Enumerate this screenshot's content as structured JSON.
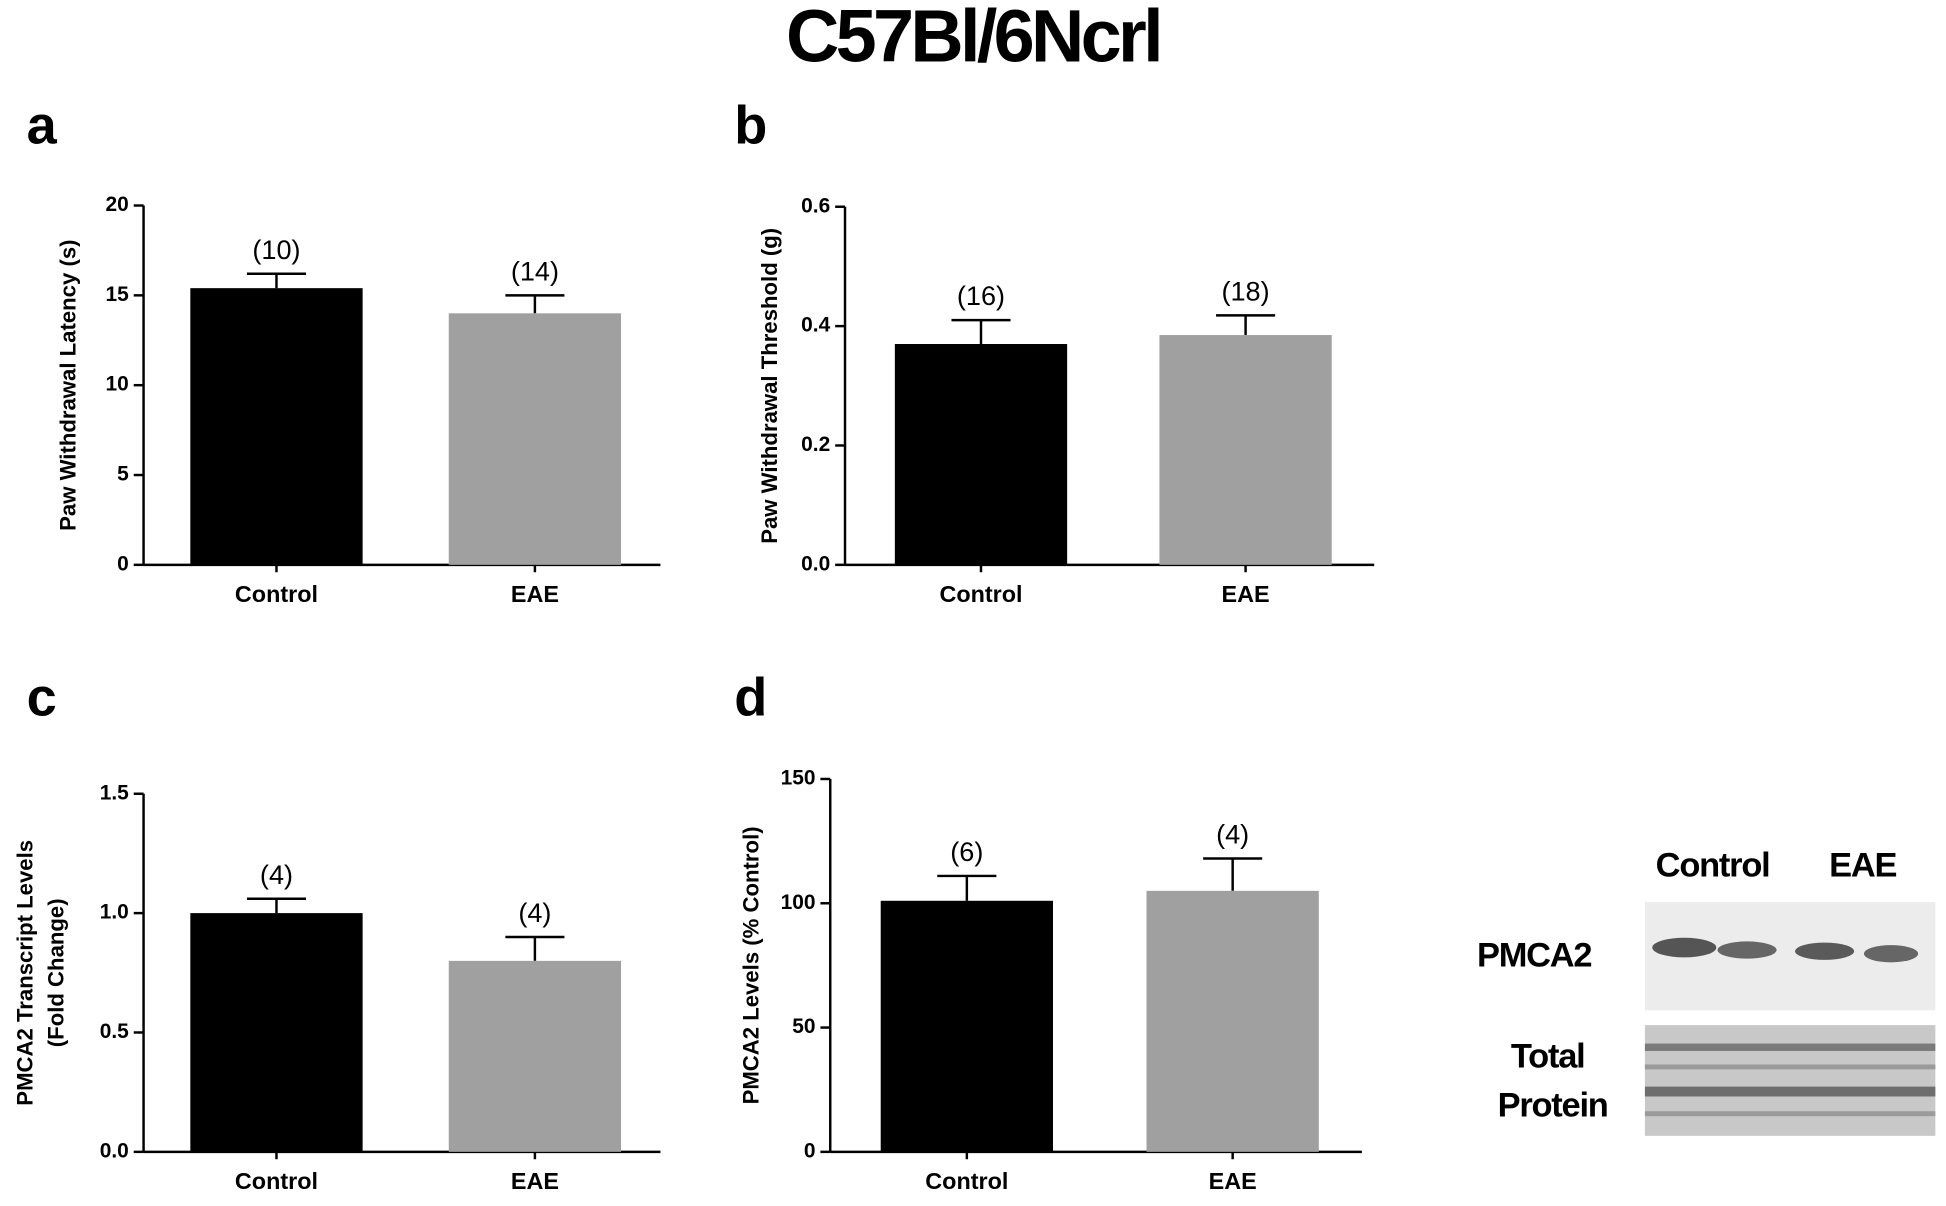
{
  "title": "C57Bl/6Ncrl",
  "chart_data": [
    {
      "type": "bar",
      "panel": "a",
      "ylabel": [
        "Paw Withdrawal Latency (s)"
      ],
      "categories": [
        "Control",
        "EAE"
      ],
      "values": [
        15.4,
        14.0
      ],
      "errors": [
        0.8,
        1.0
      ],
      "n_labels": [
        "(10)",
        "(14)"
      ],
      "colors": [
        "#000000",
        "#a0a0a0"
      ],
      "ylim": [
        0,
        20
      ],
      "yticks": [
        0,
        5,
        10,
        15,
        20
      ]
    },
    {
      "type": "bar",
      "panel": "b",
      "ylabel": [
        "Paw Withdrawal Threshold (g)"
      ],
      "categories": [
        "Control",
        "EAE"
      ],
      "values": [
        0.37,
        0.385
      ],
      "errors": [
        0.04,
        0.033
      ],
      "n_labels": [
        "(16)",
        "(18)"
      ],
      "colors": [
        "#000000",
        "#a0a0a0"
      ],
      "ylim": [
        0,
        0.6
      ],
      "yticks": [
        {
          "value": 0,
          "label": "0.0"
        },
        0.2,
        0.4,
        0.6
      ]
    },
    {
      "type": "bar",
      "panel": "c",
      "ylabel": [
        "PMCA2 Transcript Levels",
        "(Fold  Change)"
      ],
      "categories": [
        "Control",
        "EAE"
      ],
      "values": [
        1.0,
        0.8
      ],
      "errors": [
        0.06,
        0.1
      ],
      "n_labels": [
        "(4)",
        "(4)"
      ],
      "colors": [
        "#000000",
        "#a0a0a0"
      ],
      "ylim": [
        0,
        1.5
      ],
      "yticks": [
        {
          "value": 0,
          "label": "0.0"
        },
        0.5,
        {
          "value": 1,
          "label": "1.0"
        },
        1.5
      ]
    },
    {
      "type": "bar",
      "panel": "d",
      "ylabel": [
        "PMCA2  Levels (% Control)"
      ],
      "categories": [
        "Control",
        "EAE"
      ],
      "values": [
        101,
        105
      ],
      "errors": [
        10,
        13
      ],
      "n_labels": [
        "(6)",
        "(4)"
      ],
      "colors": [
        "#000000",
        "#a0a0a0"
      ],
      "ylim": [
        0,
        150
      ],
      "yticks": [
        0,
        50,
        100,
        150
      ]
    }
  ],
  "blot": {
    "lanes": [
      "Control",
      "EAE"
    ],
    "pmca2": "PMCA2",
    "total_protein": [
      "Total",
      "Protein"
    ]
  }
}
